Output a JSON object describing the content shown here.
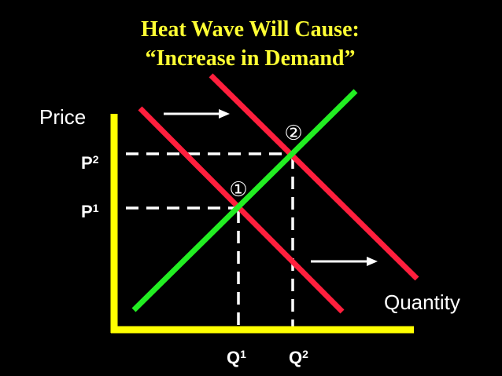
{
  "title": {
    "lines": [
      "Heat Wave Will Cause:",
      "“Increase in Demand”"
    ]
  },
  "axes": {
    "y_label": "Price",
    "x_label": "Quantity"
  },
  "price_labels": [
    {
      "letter": "P",
      "index": "2"
    },
    {
      "letter": "P",
      "index": "1"
    }
  ],
  "quantity_labels": [
    {
      "letter": "Q",
      "index": "1"
    },
    {
      "letter": "Q",
      "index": "2"
    }
  ],
  "equilibria": [
    "①",
    "②"
  ]
}
